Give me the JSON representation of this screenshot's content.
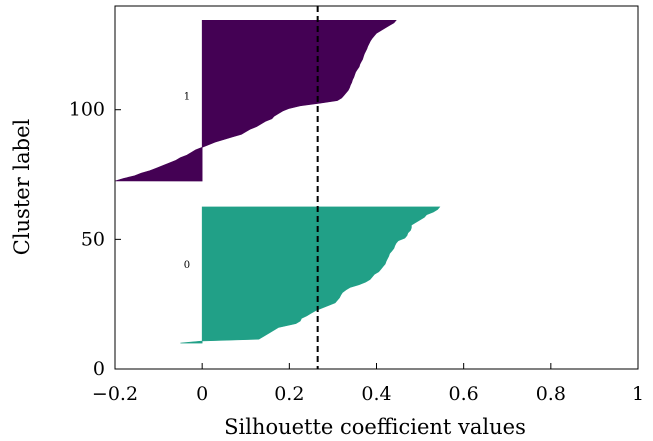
{
  "chart_data": {
    "type": "area",
    "title": "",
    "xlabel": "Silhouette coefficient values",
    "ylabel": "Cluster label",
    "xlim": [
      -0.2,
      1
    ],
    "ylim": [
      0,
      140
    ],
    "xticks": [
      -0.2,
      0,
      0.2,
      0.4,
      0.6,
      0.8,
      1
    ],
    "xtick_labels": [
      "−0.2",
      "0",
      "0.2",
      "0.4",
      "0.6",
      "0.8",
      "1"
    ],
    "yticks": [
      0,
      50,
      100
    ],
    "ytick_labels": [
      "0",
      "50",
      "100"
    ],
    "grid": false,
    "average_silhouette": 0.265,
    "series": [
      {
        "label": "0",
        "color": "#21a087",
        "label_position": [
          -0.035,
          39
        ],
        "samples": [
          [
            10,
            -0.05
          ],
          [
            10.8,
            0.0
          ],
          [
            11.5,
            0.13
          ],
          [
            12.5,
            0.14
          ],
          [
            14,
            0.155
          ],
          [
            16,
            0.175
          ],
          [
            17.5,
            0.215
          ],
          [
            18.5,
            0.225
          ],
          [
            19.5,
            0.228
          ],
          [
            20.5,
            0.24
          ],
          [
            21.5,
            0.25
          ],
          [
            22.5,
            0.26
          ],
          [
            23.5,
            0.275
          ],
          [
            24.5,
            0.29
          ],
          [
            25.5,
            0.305
          ],
          [
            26.5,
            0.31
          ],
          [
            27.5,
            0.315
          ],
          [
            28.5,
            0.318
          ],
          [
            29.5,
            0.322
          ],
          [
            30.5,
            0.33
          ],
          [
            31.5,
            0.34
          ],
          [
            32.5,
            0.36
          ],
          [
            33.5,
            0.375
          ],
          [
            34.5,
            0.385
          ],
          [
            35.5,
            0.39
          ],
          [
            36.5,
            0.395
          ],
          [
            37.5,
            0.405
          ],
          [
            38.5,
            0.41
          ],
          [
            39.5,
            0.415
          ],
          [
            40.5,
            0.42
          ],
          [
            41.5,
            0.422
          ],
          [
            42.5,
            0.425
          ],
          [
            43.5,
            0.428
          ],
          [
            44.5,
            0.43
          ],
          [
            45.5,
            0.435
          ],
          [
            46.5,
            0.44
          ],
          [
            47.5,
            0.442
          ],
          [
            48.5,
            0.445
          ],
          [
            49.5,
            0.45
          ],
          [
            50.5,
            0.465
          ],
          [
            51.5,
            0.47
          ],
          [
            52.5,
            0.472
          ],
          [
            53.5,
            0.478
          ],
          [
            54.5,
            0.48
          ],
          [
            55.5,
            0.48
          ],
          [
            56.5,
            0.49
          ],
          [
            57.5,
            0.5
          ],
          [
            58.5,
            0.51
          ],
          [
            59.5,
            0.515
          ],
          [
            60.5,
            0.53
          ],
          [
            61.5,
            0.54
          ],
          [
            62.5,
            0.545
          ]
        ]
      },
      {
        "label": "1",
        "color": "#440154",
        "label_position": [
          -0.035,
          104
        ],
        "samples": [
          [
            72.5,
            -0.2
          ],
          [
            73.5,
            -0.18
          ],
          [
            74.5,
            -0.155
          ],
          [
            75.5,
            -0.14
          ],
          [
            76.5,
            -0.12
          ],
          [
            77.5,
            -0.105
          ],
          [
            78.5,
            -0.09
          ],
          [
            79.5,
            -0.075
          ],
          [
            80.5,
            -0.06
          ],
          [
            81.5,
            -0.05
          ],
          [
            82.5,
            -0.035
          ],
          [
            83.5,
            -0.025
          ],
          [
            84.5,
            -0.015
          ],
          [
            85.5,
            0.0
          ],
          [
            86.5,
            0.015
          ],
          [
            87.5,
            0.03
          ],
          [
            88.5,
            0.05
          ],
          [
            89.5,
            0.07
          ],
          [
            90.5,
            0.09
          ],
          [
            91.5,
            0.1
          ],
          [
            92.5,
            0.11
          ],
          [
            93.5,
            0.125
          ],
          [
            94.5,
            0.135
          ],
          [
            95.5,
            0.145
          ],
          [
            96.5,
            0.16
          ],
          [
            97.5,
            0.165
          ],
          [
            98.5,
            0.175
          ],
          [
            99.5,
            0.185
          ],
          [
            100.5,
            0.2
          ],
          [
            101.5,
            0.225
          ],
          [
            102.5,
            0.27
          ],
          [
            103.5,
            0.31
          ],
          [
            104.5,
            0.32
          ],
          [
            105.5,
            0.325
          ],
          [
            106.5,
            0.33
          ],
          [
            107.5,
            0.335
          ],
          [
            108.5,
            0.338
          ],
          [
            109.5,
            0.34
          ],
          [
            110.5,
            0.343
          ],
          [
            111.5,
            0.345
          ],
          [
            112.5,
            0.348
          ],
          [
            113.5,
            0.35
          ],
          [
            114.5,
            0.352
          ],
          [
            115.5,
            0.356
          ],
          [
            116.5,
            0.36
          ],
          [
            117.5,
            0.362
          ],
          [
            118.5,
            0.365
          ],
          [
            119.5,
            0.368
          ],
          [
            120.5,
            0.37
          ],
          [
            121.5,
            0.372
          ],
          [
            122.5,
            0.375
          ],
          [
            123.5,
            0.378
          ],
          [
            124.5,
            0.38
          ],
          [
            125.5,
            0.383
          ],
          [
            126.5,
            0.386
          ],
          [
            127.5,
            0.39
          ],
          [
            128.5,
            0.395
          ],
          [
            129.5,
            0.4
          ],
          [
            130.5,
            0.41
          ],
          [
            131.5,
            0.42
          ],
          [
            132.5,
            0.43
          ],
          [
            133.5,
            0.44
          ],
          [
            134.5,
            0.445
          ]
        ]
      }
    ]
  }
}
